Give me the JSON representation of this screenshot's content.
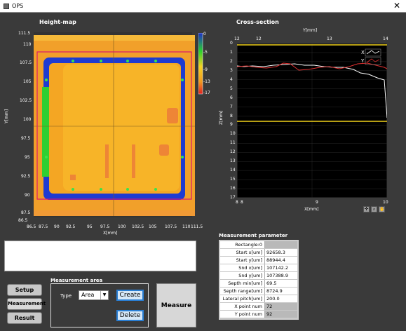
{
  "window": {
    "title": "OPS",
    "close_glyph": "✕"
  },
  "heightmap": {
    "title": "Height-map",
    "xlabel": "X[mm]",
    "ylabel": "Y[mm]",
    "xticks": [
      "86.5",
      "87.5",
      "90",
      "92.5",
      "95",
      "97.5",
      "100",
      "102.5",
      "105",
      "107.5",
      "110",
      "111.5"
    ],
    "yticks": [
      "111.5",
      "110",
      "107.5",
      "105",
      "102.5",
      "100",
      "97.5",
      "95",
      "92.5",
      "90",
      "87.5",
      "86.5"
    ],
    "colorbar": [
      "0",
      "-5",
      "-9",
      "-13",
      "-17"
    ]
  },
  "cross_section": {
    "title": "Cross-section",
    "top_axis_label": "Y[mm]",
    "top_ticks": [
      "12",
      "12",
      "13",
      "14"
    ],
    "xlabel": "X[mm]",
    "bottom_ticks": [
      "8",
      "8",
      "9",
      "10"
    ],
    "ylabel": "Z[mm]",
    "yticks": [
      "0",
      "1",
      "2",
      "3",
      "4",
      "5",
      "6",
      "7",
      "8",
      "9",
      "10",
      "11",
      "12",
      "13",
      "14",
      "15",
      "16",
      "17"
    ],
    "legend": [
      "X",
      "Y"
    ],
    "colors": {
      "x_series": "#ffffff",
      "y_series": "#e03030",
      "ref_line": "#f2d21b",
      "plot_bg": "#000000"
    }
  },
  "sidebar": {
    "setup": "Setup",
    "measurement": "Measurement",
    "result": "Result"
  },
  "measurement_area": {
    "title": "Measurement area",
    "type_label": "Type",
    "type_value": "Area",
    "create": "Create",
    "delete": "Delete"
  },
  "measure_button": "Measure",
  "measurement_parameter": {
    "title": "Measurement parameter",
    "rows": [
      {
        "label": "Rectangle:0",
        "value": ""
      },
      {
        "label": "Start x[um]",
        "value": "92658.3"
      },
      {
        "label": "Start y[um]",
        "value": "88944.4"
      },
      {
        "label": "Snd x[um]",
        "value": "107142.2"
      },
      {
        "label": "Snd y[um]",
        "value": "107388.9"
      },
      {
        "label": "Septh min[um]",
        "value": "69.5"
      },
      {
        "label": "Septh range[um]",
        "value": "8724.9"
      },
      {
        "label": "Lateral pitch[um]",
        "value": "200.0"
      },
      {
        "label": "X point num",
        "value": "72"
      },
      {
        "label": "Y point num",
        "value": "92"
      }
    ]
  }
}
